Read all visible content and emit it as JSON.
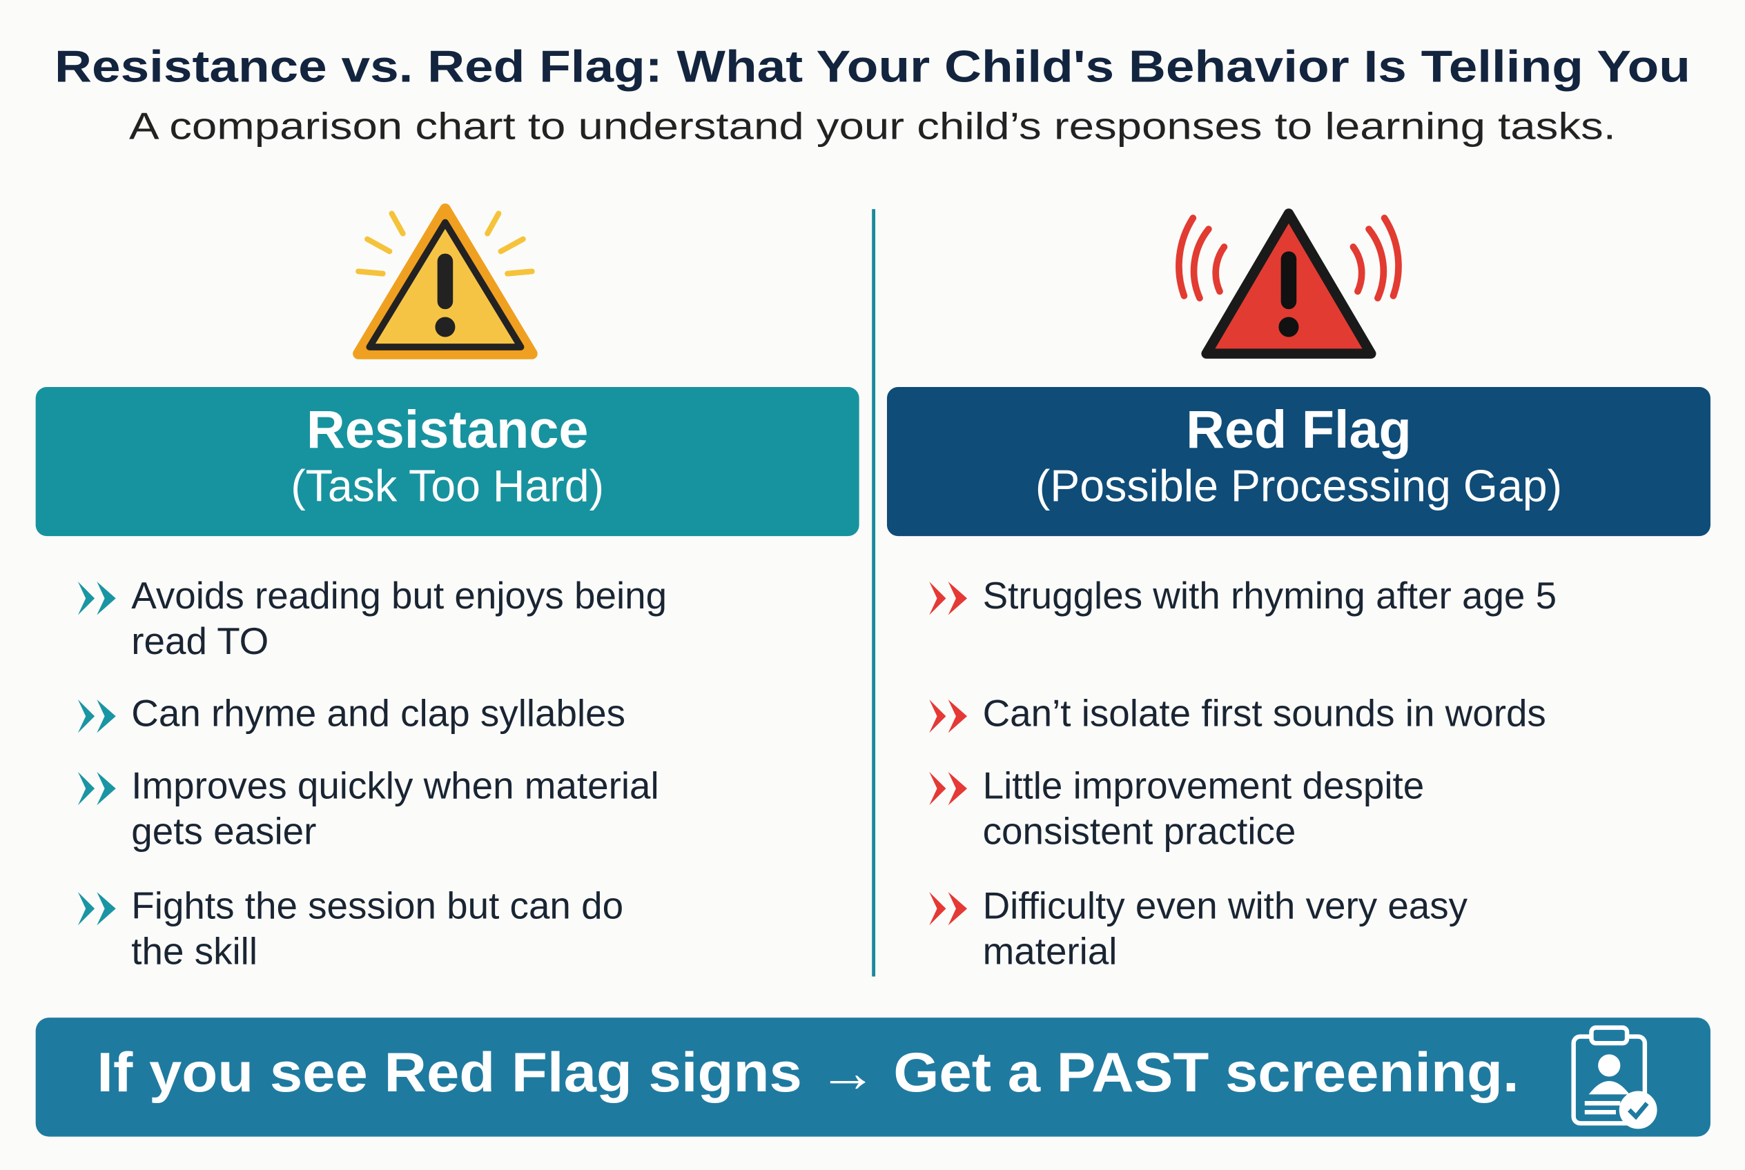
{
  "header": {
    "title": "Resistance vs. Red Flag: What Your Child's Behavior Is Telling You",
    "subtitle": "A comparison chart to understand your child’s responses to learning tasks."
  },
  "columns": [
    {
      "title": "Resistance",
      "subtitle": "(Task Too Hard)",
      "items": [
        [
          "Avoids reading but enjoys being",
          "read TO"
        ],
        [
          "Can rhyme and clap syllables"
        ],
        [
          "Improves quickly when material",
          "gets easier"
        ],
        [
          "Fights the session but can do",
          "the skill"
        ]
      ]
    },
    {
      "title": "Red Flag",
      "subtitle": "(Possible Processing Gap)",
      "items": [
        [
          "Struggles with rhyming after age 5"
        ],
        [
          "Can’t isolate first sounds in words"
        ],
        [
          "Little improvement despite",
          "consistent practice"
        ],
        [
          "Difficulty even with very easy",
          "material"
        ]
      ]
    }
  ],
  "footer": {
    "text": "If you see Red Flag signs → Get a PAST screening."
  }
}
